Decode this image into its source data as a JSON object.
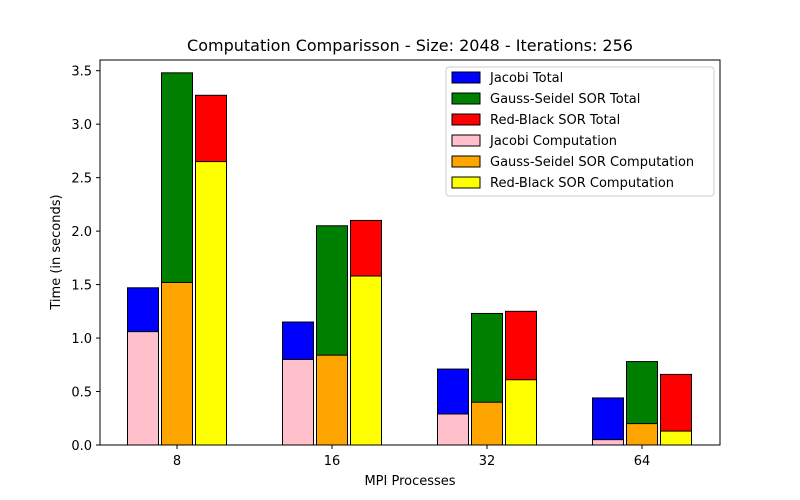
{
  "chart_data": {
    "type": "bar",
    "title": "Computation Comparisson - Size: 2048 - Iterations: 256",
    "xlabel": "MPI Processes",
    "ylabel": "Time (in seconds)",
    "categories": [
      "8",
      "16",
      "32",
      "64"
    ],
    "ylim": [
      0,
      3.6
    ],
    "yticks": [
      0.0,
      0.5,
      1.0,
      1.5,
      2.0,
      2.5,
      3.0,
      3.5
    ],
    "ytick_labels": [
      "0.0",
      "0.5",
      "1.0",
      "1.5",
      "2.0",
      "2.5",
      "3.0",
      "3.5"
    ],
    "grid": false,
    "legend_position": "top-right",
    "series": [
      {
        "name": "Jacobi Total",
        "values": [
          1.47,
          1.15,
          0.71,
          0.44
        ],
        "color": "#0000ff",
        "group": 0
      },
      {
        "name": "Gauss-Seidel SOR Total",
        "values": [
          3.48,
          2.05,
          1.23,
          0.78
        ],
        "color": "#008000",
        "group": 1
      },
      {
        "name": "Red-Black SOR Total",
        "values": [
          3.27,
          2.1,
          1.25,
          0.66
        ],
        "color": "#ff0000",
        "group": 2
      },
      {
        "name": "Jacobi Computation",
        "values": [
          1.06,
          0.8,
          0.29,
          0.05
        ],
        "color": "#ffc0cb",
        "group": 0
      },
      {
        "name": "Gauss-Seidel SOR Computation",
        "values": [
          1.52,
          0.84,
          0.4,
          0.2
        ],
        "color": "#ffa500",
        "group": 1
      },
      {
        "name": "Red-Black SOR Computation",
        "values": [
          2.65,
          1.58,
          0.61,
          0.13
        ],
        "color": "#ffff00",
        "group": 2
      }
    ]
  }
}
